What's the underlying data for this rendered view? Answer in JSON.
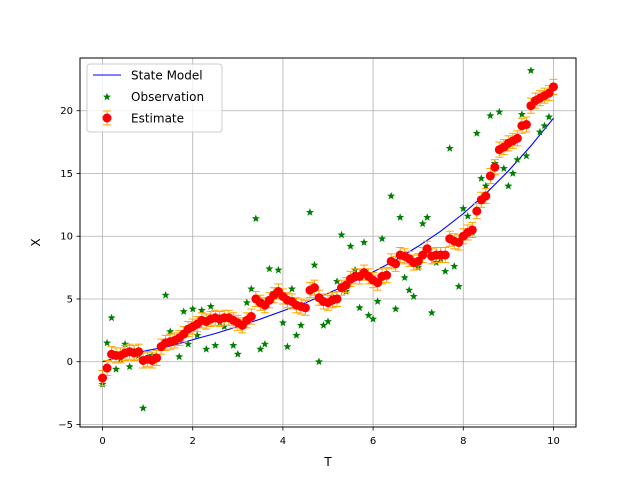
{
  "chart_data": {
    "type": "scatter",
    "title": "",
    "xlabel": "T",
    "ylabel": "X",
    "xlim": [
      -0.5,
      10.5
    ],
    "ylim": [
      -5.2,
      24.2
    ],
    "xticks": [
      0,
      2,
      4,
      6,
      8,
      10
    ],
    "xtick_labels": [
      "0",
      "2",
      "4",
      "6",
      "8",
      "10"
    ],
    "yticks": [
      -5,
      0,
      5,
      10,
      15,
      20
    ],
    "ytick_labels": [
      "−5",
      "0",
      "5",
      "10",
      "15",
      "20"
    ],
    "grid": true,
    "legend_position": "upper-left",
    "legend": [
      "State Model",
      "Observation",
      "Estimate"
    ],
    "colors": {
      "model": "#0000ff",
      "observation": "#008000",
      "estimate": "#ff0000",
      "errorbar": "#ffa500",
      "grid": "#b0b0b0"
    },
    "error_bar": 0.6,
    "series": [
      {
        "name": "State Model",
        "kind": "line",
        "x": [
          0,
          0.5,
          1,
          1.5,
          2,
          2.5,
          3,
          3.5,
          4,
          4.5,
          5,
          5.5,
          6,
          6.5,
          7,
          7.5,
          8,
          8.5,
          9,
          9.5,
          10
        ],
        "y": [
          0,
          0.5,
          0.9,
          1.25,
          1.75,
          2.25,
          2.8,
          3.4,
          4.05,
          4.7,
          5.45,
          6.25,
          7.15,
          8.1,
          9.2,
          10.4,
          11.8,
          13.4,
          15.2,
          17.2,
          19.4
        ]
      },
      {
        "name": "Observation",
        "kind": "points",
        "marker": "star",
        "x": [
          0,
          0.1,
          0.2,
          0.3,
          0.4,
          0.5,
          0.6,
          0.7,
          0.8,
          0.9,
          1.0,
          1.1,
          1.2,
          1.3,
          1.4,
          1.5,
          1.6,
          1.7,
          1.8,
          1.9,
          2.0,
          2.1,
          2.2,
          2.3,
          2.4,
          2.5,
          2.6,
          2.7,
          2.8,
          2.9,
          3.0,
          3.1,
          3.2,
          3.3,
          3.4,
          3.5,
          3.6,
          3.7,
          3.8,
          3.9,
          4.0,
          4.1,
          4.2,
          4.3,
          4.4,
          4.5,
          4.6,
          4.7,
          4.8,
          4.9,
          5.0,
          5.1,
          5.2,
          5.3,
          5.4,
          5.5,
          5.6,
          5.7,
          5.8,
          5.9,
          6.0,
          6.1,
          6.2,
          6.3,
          6.4,
          6.5,
          6.6,
          6.7,
          6.8,
          6.9,
          7.0,
          7.1,
          7.2,
          7.3,
          7.4,
          7.5,
          7.6,
          7.7,
          7.8,
          7.9,
          8.0,
          8.1,
          8.2,
          8.3,
          8.4,
          8.5,
          8.6,
          8.7,
          8.8,
          8.9,
          9.0,
          9.1,
          9.2,
          9.3,
          9.4,
          9.5,
          9.6,
          9.7,
          9.8,
          9.9
        ],
        "y": [
          -1.8,
          1.5,
          3.5,
          -0.6,
          0.2,
          1.4,
          -0.4,
          0.9,
          0.5,
          -3.7,
          0.1,
          0.5,
          0.3,
          1.3,
          5.3,
          2.4,
          1.8,
          0.4,
          4.0,
          1.4,
          4.2,
          2.1,
          4.1,
          1.0,
          4.4,
          1.3,
          3.1,
          2.8,
          3.6,
          1.3,
          0.6,
          3.0,
          4.7,
          5.8,
          11.4,
          1.0,
          1.4,
          7.4,
          5.5,
          7.3,
          3.1,
          1.2,
          5.8,
          2.1,
          2.9,
          4.4,
          11.9,
          7.7,
          0.0,
          2.9,
          3.2,
          5.2,
          6.4,
          10.1,
          5.6,
          9.2,
          7.3,
          4.3,
          9.5,
          3.7,
          3.4,
          4.8,
          9.8,
          7.0,
          13.2,
          4.2,
          11.5,
          6.7,
          5.7,
          5.2,
          7.5,
          11.0,
          11.5,
          3.9,
          7.9,
          8.2,
          7.2,
          17.0,
          7.6,
          6.0,
          12.2,
          11.6,
          10.3,
          18.2,
          14.6,
          14.0,
          19.6,
          15.8,
          19.9,
          15.4,
          14.0,
          15.0,
          16.1,
          19.7,
          16.4,
          23.2,
          20.9,
          18.3,
          18.8,
          19.5
        ]
      },
      {
        "name": "Estimate",
        "kind": "points_errorbar",
        "marker": "circle",
        "x": [
          0,
          0.1,
          0.2,
          0.3,
          0.4,
          0.5,
          0.6,
          0.7,
          0.8,
          0.9,
          1.0,
          1.1,
          1.2,
          1.3,
          1.4,
          1.5,
          1.6,
          1.7,
          1.8,
          1.9,
          2.0,
          2.1,
          2.2,
          2.3,
          2.4,
          2.5,
          2.6,
          2.7,
          2.8,
          2.9,
          3.0,
          3.1,
          3.2,
          3.3,
          3.4,
          3.5,
          3.6,
          3.7,
          3.8,
          3.9,
          4.0,
          4.1,
          4.2,
          4.3,
          4.4,
          4.5,
          4.6,
          4.7,
          4.8,
          4.9,
          5.0,
          5.1,
          5.2,
          5.3,
          5.4,
          5.5,
          5.6,
          5.7,
          5.8,
          5.9,
          6.0,
          6.1,
          6.2,
          6.3,
          6.4,
          6.5,
          6.6,
          6.7,
          6.8,
          6.9,
          7.0,
          7.1,
          7.2,
          7.3,
          7.4,
          7.5,
          7.6,
          7.7,
          7.8,
          7.9,
          8.0,
          8.1,
          8.2,
          8.3,
          8.4,
          8.5,
          8.6,
          8.7,
          8.8,
          8.9,
          9.0,
          9.1,
          9.2,
          9.3,
          9.4,
          9.5,
          9.6,
          9.7,
          9.8,
          9.9,
          10.0
        ],
        "y": [
          -1.3,
          -0.5,
          0.6,
          0.5,
          0.5,
          0.7,
          0.8,
          0.7,
          0.8,
          0.1,
          0.2,
          0.1,
          0.3,
          1.2,
          1.5,
          1.6,
          1.7,
          1.9,
          2.2,
          2.6,
          2.8,
          3.0,
          3.3,
          3.2,
          3.4,
          3.5,
          3.4,
          3.5,
          3.5,
          3.3,
          3.1,
          2.9,
          3.3,
          3.6,
          5.0,
          4.7,
          4.5,
          4.9,
          5.3,
          5.6,
          5.2,
          4.9,
          4.8,
          4.5,
          4.4,
          4.3,
          5.7,
          5.9,
          5.1,
          4.8,
          4.7,
          4.9,
          5.0,
          5.9,
          6.1,
          6.6,
          6.8,
          6.8,
          7.1,
          6.8,
          6.5,
          6.3,
          6.8,
          6.9,
          8.0,
          7.8,
          8.5,
          8.4,
          8.2,
          7.9,
          8.0,
          8.5,
          9.0,
          8.4,
          8.5,
          8.5,
          8.5,
          9.8,
          9.6,
          9.5,
          10.0,
          10.3,
          10.5,
          12.0,
          12.9,
          13.2,
          14.8,
          15.5,
          16.9,
          17.1,
          17.4,
          17.6,
          17.8,
          18.8,
          18.9,
          20.4,
          20.8,
          21.0,
          21.2,
          21.4,
          21.9
        ]
      }
    ]
  }
}
